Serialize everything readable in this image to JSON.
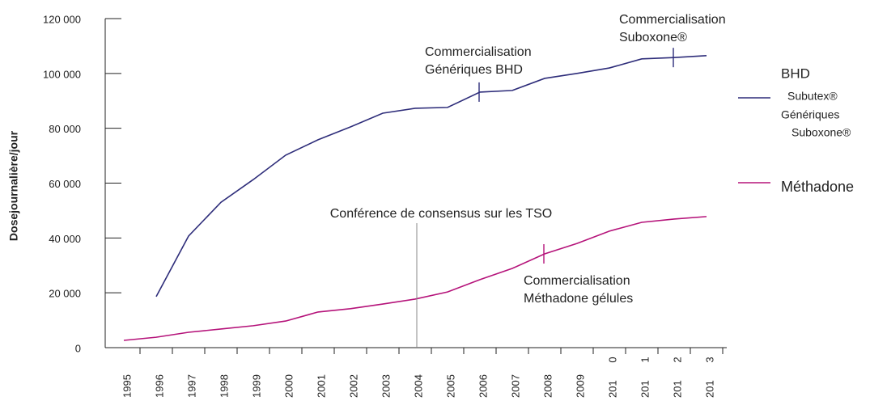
{
  "chart_data": {
    "type": "line",
    "y_label": "Dosejournalière/jour",
    "categories": [
      "1995",
      "1996",
      "1997",
      "1998",
      "1999",
      "2000",
      "2001",
      "2002",
      "2003",
      "2004",
      "2005",
      "2006",
      "2007",
      "2008",
      "2009",
      "201 0",
      "201 1",
      "201 2",
      "201 3"
    ],
    "series": [
      {
        "name": "BHD",
        "color": "#2e2d7a",
        "subitems": [
          "Subutex®",
          "Génériques",
          "Suboxone®"
        ],
        "values": [
          null,
          18600,
          40700,
          53000,
          61300,
          70200,
          75800,
          80500,
          85500,
          87300,
          87600,
          93200,
          93800,
          98200,
          100000,
          102000,
          105300,
          105800,
          106500
        ]
      },
      {
        "name": "Méthadone",
        "color": "#b5137a",
        "values": [
          2650,
          3800,
          5600,
          6800,
          8000,
          9700,
          13000,
          14200,
          15900,
          17700,
          20300,
          24800,
          28900,
          34200,
          38000,
          42500,
          45700,
          46900,
          47800
        ]
      }
    ],
    "ylim": [
      0,
      120000
    ],
    "yticks": [
      0,
      {
        "value": 20000,
        "label": "20 000"
      },
      {
        "value": 40000,
        "label": "40 000"
      },
      {
        "value": 60000,
        "label": "60 000"
      },
      {
        "value": 80000,
        "label": "80 000"
      },
      {
        "value": 100000,
        "label": "100 000"
      },
      {
        "value": 120000,
        "label": "120 000"
      }
    ],
    "annotations": [
      {
        "lines": [
          "Conférence de consensus sur les TSO"
        ]
      },
      {
        "lines": [
          "Commercialisation",
          "Génériques BHD"
        ]
      },
      {
        "lines": [
          "Commercialisation",
          "Suboxone®"
        ]
      },
      {
        "lines": [
          "Commercialisation",
          "Méthadone gélules"
        ]
      }
    ]
  }
}
